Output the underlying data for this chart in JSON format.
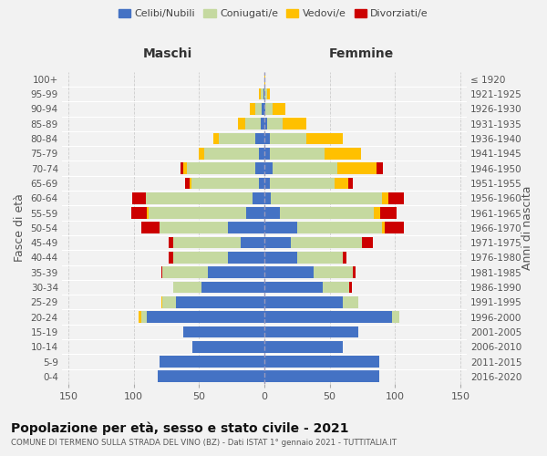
{
  "age_groups": [
    "0-4",
    "5-9",
    "10-14",
    "15-19",
    "20-24",
    "25-29",
    "30-34",
    "35-39",
    "40-44",
    "45-49",
    "50-54",
    "55-59",
    "60-64",
    "65-69",
    "70-74",
    "75-79",
    "80-84",
    "85-89",
    "90-94",
    "95-99",
    "100+"
  ],
  "birth_years": [
    "2016-2020",
    "2011-2015",
    "2006-2010",
    "2001-2005",
    "1996-2000",
    "1991-1995",
    "1986-1990",
    "1981-1985",
    "1976-1980",
    "1971-1975",
    "1966-1970",
    "1961-1965",
    "1956-1960",
    "1951-1955",
    "1946-1950",
    "1941-1945",
    "1936-1940",
    "1931-1935",
    "1926-1930",
    "1921-1925",
    "≤ 1920"
  ],
  "maschi": {
    "celibi": [
      82,
      80,
      55,
      62,
      90,
      68,
      48,
      43,
      28,
      18,
      28,
      14,
      9,
      4,
      7,
      4,
      7,
      3,
      2,
      1,
      0
    ],
    "coniugati": [
      0,
      0,
      0,
      0,
      4,
      10,
      22,
      35,
      42,
      52,
      52,
      75,
      82,
      52,
      52,
      42,
      28,
      12,
      5,
      2,
      0
    ],
    "vedovi": [
      0,
      0,
      0,
      0,
      2,
      1,
      0,
      0,
      0,
      0,
      0,
      1,
      0,
      1,
      3,
      4,
      4,
      5,
      4,
      1,
      0
    ],
    "divorziati": [
      0,
      0,
      0,
      0,
      0,
      0,
      0,
      1,
      3,
      3,
      14,
      12,
      10,
      4,
      2,
      0,
      0,
      0,
      0,
      0,
      0
    ]
  },
  "femmine": {
    "nubili": [
      88,
      88,
      60,
      72,
      98,
      60,
      45,
      38,
      25,
      20,
      25,
      12,
      5,
      4,
      6,
      4,
      4,
      2,
      1,
      0,
      0
    ],
    "coniugate": [
      0,
      0,
      0,
      0,
      5,
      12,
      20,
      30,
      35,
      55,
      65,
      72,
      85,
      50,
      50,
      42,
      28,
      12,
      5,
      2,
      0
    ],
    "vedove": [
      0,
      0,
      0,
      0,
      0,
      0,
      0,
      0,
      0,
      0,
      2,
      5,
      5,
      10,
      30,
      28,
      28,
      18,
      10,
      2,
      1
    ],
    "divorziate": [
      0,
      0,
      0,
      0,
      0,
      0,
      2,
      2,
      3,
      8,
      15,
      12,
      12,
      4,
      5,
      0,
      0,
      0,
      0,
      0,
      0
    ]
  },
  "colors": {
    "celibi": "#4472c4",
    "coniugati": "#c5d9a0",
    "vedovi": "#ffc000",
    "divorziati": "#cc0000"
  },
  "xlim": 155,
  "title": "Popolazione per età, sesso e stato civile - 2021",
  "subtitle": "COMUNE DI TERMENO SULLA STRADA DEL VINO (BZ) - Dati ISTAT 1° gennaio 2021 - TUTTITALIA.IT",
  "ylabel_left": "Fasce di età",
  "ylabel_right": "Anni di nascita",
  "xlabel_maschi": "Maschi",
  "xlabel_femmine": "Femmine",
  "bg_color": "#f2f2f2",
  "plot_bg": "#f2f2f2"
}
